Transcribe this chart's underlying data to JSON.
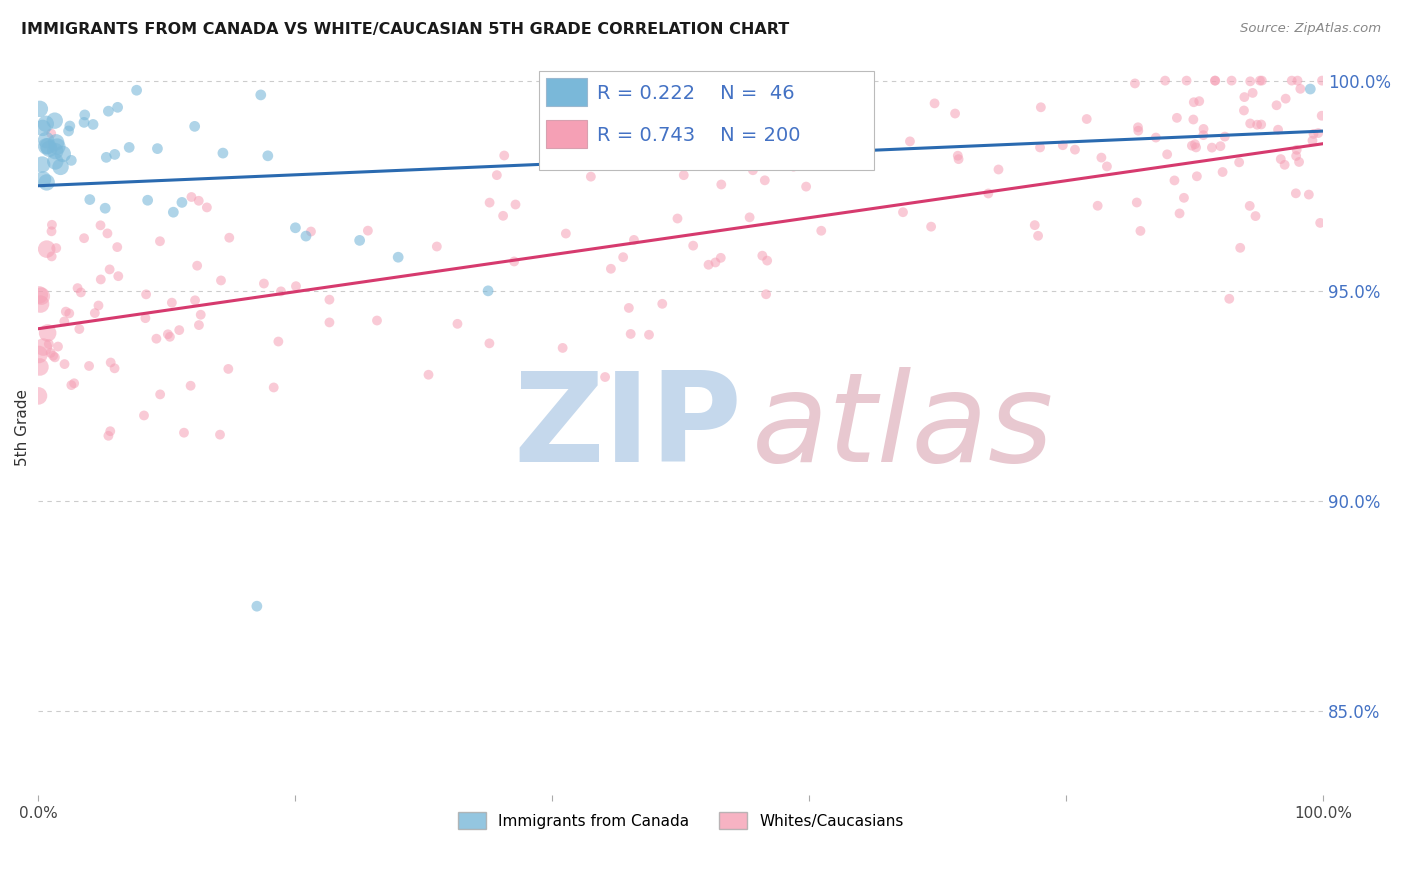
{
  "title": "IMMIGRANTS FROM CANADA VS WHITE/CAUCASIAN 5TH GRADE CORRELATION CHART",
  "source": "Source: ZipAtlas.com",
  "ylabel": "5th Grade",
  "blue_label": "Immigrants from Canada",
  "pink_label": "Whites/Caucasians",
  "blue_R": 0.222,
  "blue_N": 46,
  "pink_R": 0.743,
  "pink_N": 200,
  "blue_color": "#7ab8d9",
  "pink_color": "#f5a0b5",
  "blue_line_color": "#2a6ab0",
  "pink_line_color": "#d63a6e",
  "xlim": [
    0.0,
    1.0
  ],
  "ylim": [
    0.83,
    1.005
  ],
  "yticks": [
    0.85,
    0.9,
    0.95,
    1.0
  ],
  "ytick_labels": [
    "85.0%",
    "90.0%",
    "95.0%",
    "100.0%"
  ],
  "background_color": "#ffffff",
  "grid_color": "#cccccc",
  "annotation_box_color": "#ffffff",
  "annotation_border_color": "#cccccc",
  "blue_line_start_y": 0.975,
  "blue_line_end_y": 0.988,
  "pink_line_start_y": 0.941,
  "pink_line_end_y": 0.985,
  "watermark_zip_color": "#c5d8ec",
  "watermark_atlas_color": "#e8c8d0"
}
